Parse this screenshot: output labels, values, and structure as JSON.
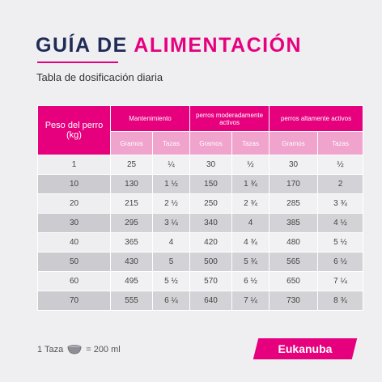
{
  "header": {
    "title_part1": "GUÍA DE",
    "title_part2": "ALIMENTACIÓN",
    "subtitle": "Tabla de dosificación diaria"
  },
  "table": {
    "weight_header": "Peso del perro (kg)",
    "groups": [
      "Mantenimiento",
      "perros moderadamente activos",
      "perros altamente activos"
    ],
    "subheaders": [
      "Gramos",
      "Tazas",
      "Gramos",
      "Tazas",
      "Gramos",
      "Tazas"
    ],
    "rows": [
      [
        "1",
        "25",
        "¼",
        "30",
        "½",
        "30",
        "½"
      ],
      [
        "10",
        "130",
        "1 ½",
        "150",
        "1 ¾",
        "170",
        "2"
      ],
      [
        "20",
        "215",
        "2 ½",
        "250",
        "2 ¾",
        "285",
        "3 ¾"
      ],
      [
        "30",
        "295",
        "3 ¼",
        "340",
        "4",
        "385",
        "4 ½"
      ],
      [
        "40",
        "365",
        "4",
        "420",
        "4 ¾",
        "480",
        "5 ½"
      ],
      [
        "50",
        "430",
        "5",
        "500",
        "5 ¾",
        "565",
        "6 ½"
      ],
      [
        "60",
        "495",
        "5 ½",
        "570",
        "6 ½",
        "650",
        "7 ¼"
      ],
      [
        "70",
        "555",
        "6 ¼",
        "640",
        "7 ¼",
        "730",
        "8 ¾"
      ]
    ]
  },
  "footer": {
    "cup_prefix": "1 Taza",
    "cup_suffix": "= 200 ml",
    "cup_icon": "cup-icon",
    "brand": "Eukanuba"
  },
  "colors": {
    "accent": "#e6007e",
    "title": "#1f2a56",
    "subheader": "#f0a3cc"
  }
}
